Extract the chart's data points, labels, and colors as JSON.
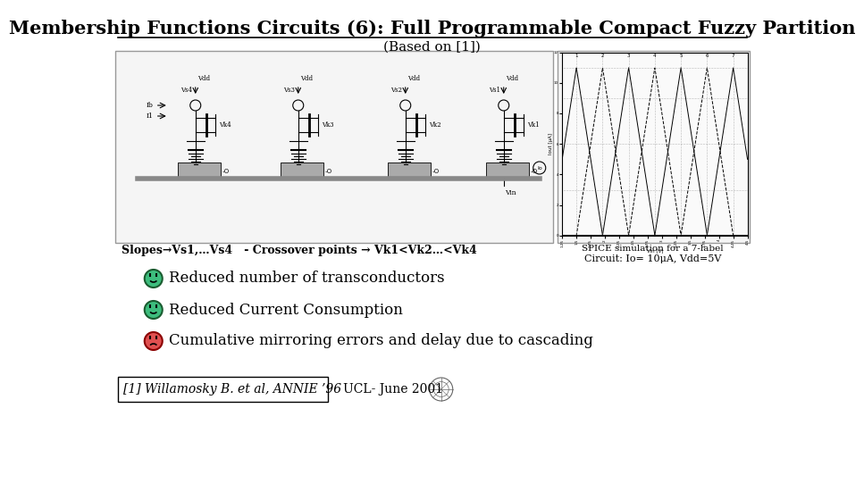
{
  "title_main": "Membership Functions Circuits (6): Full Programmable Compact Fuzzy Partition",
  "title_sub": "(Based on [1])",
  "title_fontsize": 15,
  "subtitle_fontsize": 11,
  "bg_color": "#ffffff",
  "slopes_text": "Slopes→Vs1,…Vs4   - Crossover points → Vk1<Vk2…<Vk4",
  "spice_line1": "SPICE simulation for a 7-label",
  "spice_line2": "Circuit: Io= 10μA, Vdd=5V",
  "bullet1": "Reduced number of transconductors",
  "bullet2": "Reduced Current Consumption",
  "bullet3": "Cumulative mirroring errors and delay due to cascading",
  "ref_text": "[1] Willamosky B. et al, ANNIE ’96",
  "ucl_text": "UCL- June 2001",
  "smiley_green": "#3dbd7d",
  "smiley_green_edge": "#1a5c30",
  "smiley_red": "#e05050",
  "smiley_red_edge": "#8b0000",
  "bullet_fontsize": 12,
  "ref_fontsize": 10
}
